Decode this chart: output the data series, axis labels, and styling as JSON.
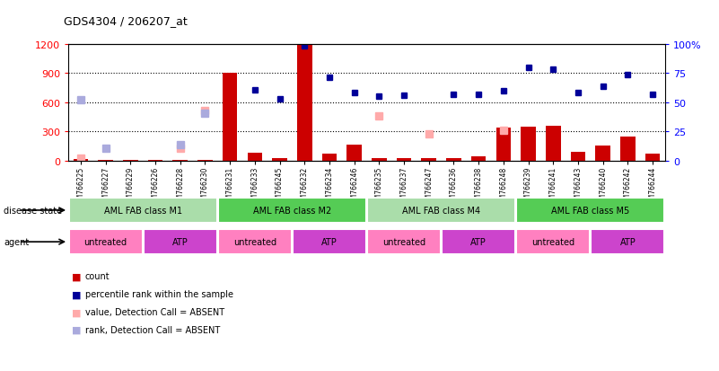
{
  "title": "GDS4304 / 206207_at",
  "samples": [
    "GSM766225",
    "GSM766227",
    "GSM766229",
    "GSM766226",
    "GSM766228",
    "GSM766230",
    "GSM766231",
    "GSM766233",
    "GSM766245",
    "GSM766232",
    "GSM766234",
    "GSM766246",
    "GSM766235",
    "GSM766237",
    "GSM766247",
    "GSM766236",
    "GSM766238",
    "GSM766248",
    "GSM766239",
    "GSM766241",
    "GSM766243",
    "GSM766240",
    "GSM766242",
    "GSM766244"
  ],
  "count_values": [
    20,
    10,
    10,
    10,
    10,
    10,
    900,
    80,
    30,
    1195,
    70,
    170,
    30,
    30,
    30,
    30,
    50,
    340,
    350,
    360,
    90,
    160,
    250,
    70
  ],
  "value_absent": [
    30,
    null,
    null,
    null,
    130,
    520,
    null,
    null,
    null,
    null,
    null,
    null,
    460,
    null,
    280,
    null,
    null,
    310,
    null,
    null,
    null,
    null,
    null,
    null
  ],
  "rank_absent": [
    630,
    130,
    null,
    null,
    170,
    490,
    null,
    null,
    null,
    null,
    null,
    null,
    null,
    null,
    null,
    null,
    null,
    null,
    null,
    null,
    null,
    null,
    null,
    null
  ],
  "percentile_rank_pct": [
    null,
    null,
    null,
    null,
    null,
    null,
    null,
    61,
    53,
    98,
    71,
    58,
    55,
    56,
    null,
    57,
    57,
    60,
    80,
    78,
    58,
    64,
    74,
    57
  ],
  "rank_absent_pct": [
    null,
    null,
    null,
    null,
    null,
    null,
    null,
    null,
    null,
    null,
    null,
    null,
    null,
    null,
    null,
    null,
    null,
    null,
    null,
    null,
    null,
    null,
    null,
    null
  ],
  "disease_states": [
    {
      "label": "AML FAB class M1",
      "start": 0,
      "end": 6,
      "color": "#aaddaa"
    },
    {
      "label": "AML FAB class M2",
      "start": 6,
      "end": 12,
      "color": "#55cc55"
    },
    {
      "label": "AML FAB class M4",
      "start": 12,
      "end": 18,
      "color": "#aaddaa"
    },
    {
      "label": "AML FAB class M5",
      "start": 18,
      "end": 24,
      "color": "#55cc55"
    }
  ],
  "agents": [
    {
      "label": "untreated",
      "start": 0,
      "end": 3,
      "color": "#ff80c0"
    },
    {
      "label": "ATP",
      "start": 3,
      "end": 6,
      "color": "#cc44cc"
    },
    {
      "label": "untreated",
      "start": 6,
      "end": 9,
      "color": "#ff80c0"
    },
    {
      "label": "ATP",
      "start": 9,
      "end": 12,
      "color": "#cc44cc"
    },
    {
      "label": "untreated",
      "start": 12,
      "end": 15,
      "color": "#ff80c0"
    },
    {
      "label": "ATP",
      "start": 15,
      "end": 18,
      "color": "#cc44cc"
    },
    {
      "label": "untreated",
      "start": 18,
      "end": 21,
      "color": "#ff80c0"
    },
    {
      "label": "ATP",
      "start": 21,
      "end": 24,
      "color": "#cc44cc"
    }
  ],
  "ylim_left": [
    0,
    1200
  ],
  "ylim_right": [
    0,
    100
  ],
  "yticks_left": [
    0,
    300,
    600,
    900,
    1200
  ],
  "yticks_right": [
    0,
    25,
    50,
    75,
    100
  ],
  "bar_color": "#cc0000",
  "percentile_color": "#000099",
  "value_absent_color": "#ffaaaa",
  "rank_absent_color": "#aaaadd",
  "bg_color": "#ffffff",
  "legend_items": [
    {
      "label": "count",
      "color": "#cc0000"
    },
    {
      "label": "percentile rank within the sample",
      "color": "#000099"
    },
    {
      "label": "value, Detection Call = ABSENT",
      "color": "#ffaaaa"
    },
    {
      "label": "rank, Detection Call = ABSENT",
      "color": "#aaaadd"
    }
  ]
}
